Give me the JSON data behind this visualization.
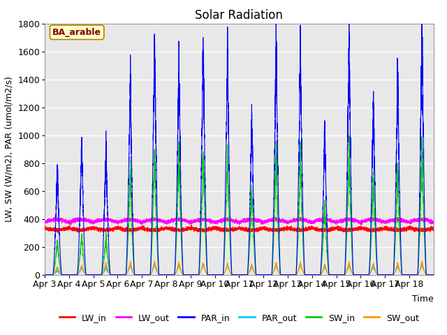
{
  "title": "Solar Radiation",
  "ylabel": "LW, SW (W/m2), PAR (umol/m2/s)",
  "xlabel": "Time",
  "annotation": "BA_arable",
  "ylim": [
    0,
    1800
  ],
  "yticks": [
    0,
    200,
    400,
    600,
    800,
    1000,
    1200,
    1400,
    1600,
    1800
  ],
  "date_labels": [
    "Apr 3",
    "Apr 4",
    "Apr 5",
    "Apr 6",
    "Apr 7",
    "Apr 8",
    "Apr 9",
    "Apr 10",
    "Apr 11",
    "Apr 12",
    "Apr 13",
    "Apr 14",
    "Apr 15",
    "Apr 16",
    "Apr 17",
    "Apr 18"
  ],
  "colors": {
    "LW_in": "#ff0000",
    "LW_out": "#ff00ff",
    "PAR_in": "#0000ff",
    "PAR_out": "#00ccff",
    "SW_in": "#00cc00",
    "SW_out": "#ff9900"
  },
  "plot_bg_color": "#e8e8e8",
  "title_fontsize": 12,
  "label_fontsize": 9,
  "tick_fontsize": 9,
  "par_in_peaks": [
    760,
    940,
    910,
    1400,
    1660,
    1510,
    1645,
    1610,
    1140,
    1660,
    1610,
    1040,
    1660,
    1250,
    1450,
    1750
  ],
  "sw_in_peaks": [
    240,
    280,
    270,
    730,
    865,
    860,
    855,
    845,
    600,
    865,
    860,
    500,
    860,
    700,
    750,
    900
  ],
  "sw_out_peaks": [
    55,
    65,
    78,
    85,
    92,
    82,
    82,
    78,
    72,
    82,
    82,
    72,
    82,
    78,
    82,
    88
  ],
  "par_out_peaks": [
    32,
    52,
    52,
    72,
    78,
    72,
    78,
    72,
    62,
    72,
    78,
    62,
    72,
    62,
    68,
    78
  ],
  "lw_in_base": 335,
  "lw_out_base": 375
}
